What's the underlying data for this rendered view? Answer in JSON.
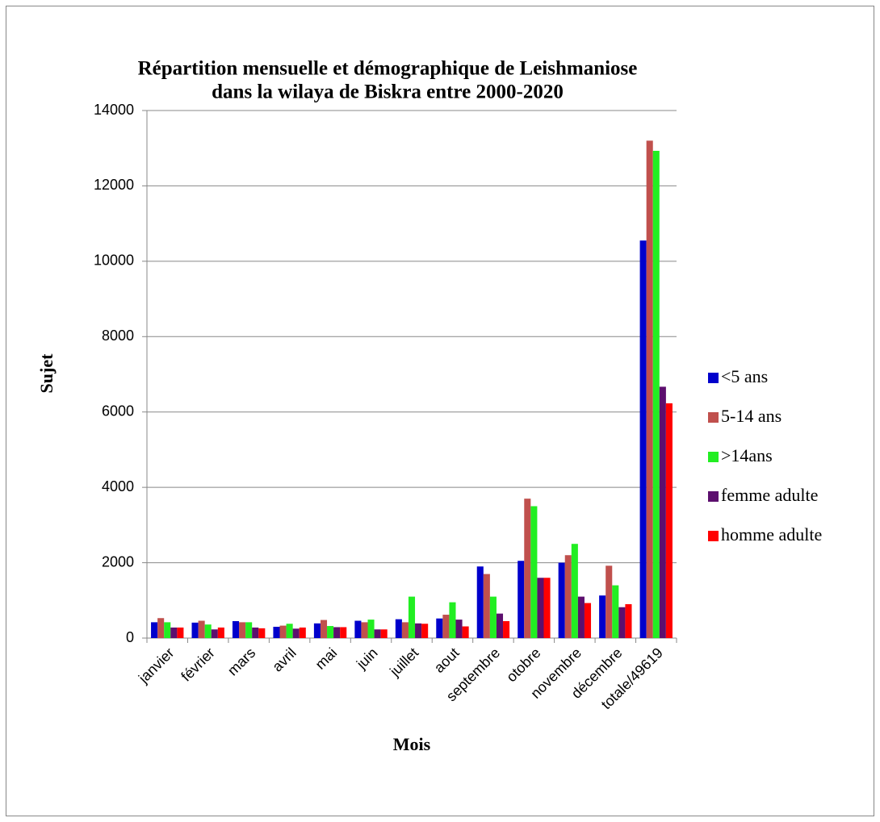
{
  "chart_data": {
    "type": "bar",
    "title": [
      "Répartition mensuelle et démographique de Leishmaniose",
      "dans la wilaya de Biskra entre 2000-2020"
    ],
    "y_label": "Sujet",
    "x_label": "Mois",
    "categories": [
      "janvier",
      "février",
      "mars",
      "avril",
      "mai",
      "juin",
      "juillet",
      "aout",
      "septembre",
      "otobre",
      "novembre",
      "décembre",
      "totale/49619"
    ],
    "series": [
      {
        "name": "<5 ans",
        "color": "#0000cc",
        "values": [
          420,
          410,
          450,
          300,
          390,
          460,
          500,
          520,
          1900,
          2050,
          2000,
          1130,
          10550
        ]
      },
      {
        "name": "5-14 ans",
        "color": "#c0504d",
        "values": [
          530,
          460,
          420,
          330,
          480,
          420,
          420,
          620,
          1700,
          3700,
          2200,
          1920,
          13200
        ]
      },
      {
        "name": ">14ans",
        "color": "#22ee22",
        "values": [
          420,
          360,
          420,
          380,
          320,
          490,
          1100,
          950,
          1100,
          3500,
          2500,
          1400,
          12930
        ]
      },
      {
        "name": "femme adulte",
        "color": "#5c0f6e",
        "values": [
          280,
          230,
          280,
          250,
          290,
          230,
          390,
          490,
          650,
          1600,
          1100,
          820,
          6670
        ]
      },
      {
        "name": "homme adulte",
        "color": "#ff0000",
        "values": [
          280,
          280,
          260,
          280,
          290,
          230,
          380,
          310,
          450,
          1600,
          930,
          900,
          6230
        ]
      }
    ],
    "ylim": [
      0,
      14000
    ],
    "yticks": [
      0,
      2000,
      4000,
      6000,
      8000,
      10000,
      12000,
      14000
    ],
    "grid": true,
    "legend": "right"
  }
}
